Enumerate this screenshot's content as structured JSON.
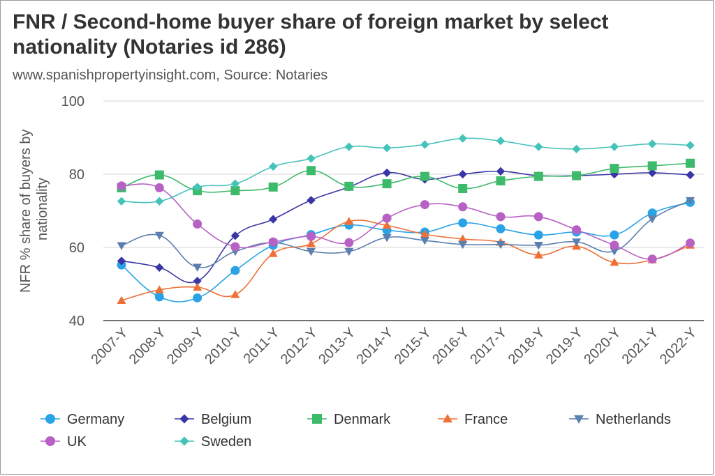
{
  "chart_data": {
    "type": "line",
    "title": "FNR / Second-home buyer share of foreign market by select nationality (Notaries id 286)",
    "subtitle": "www.spanishpropertyinsight.com, Source: Notaries",
    "ylabel_lines": [
      "NFR % share of buyers by",
      "nationality"
    ],
    "xlabel": "",
    "ylim": [
      40,
      100
    ],
    "yticks": [
      40,
      60,
      80,
      100
    ],
    "grid": true,
    "legend_position": "bottom",
    "categories": [
      "2007-Y",
      "2008-Y",
      "2009-Y",
      "2010-Y",
      "2011-Y",
      "2012-Y",
      "2013-Y",
      "2014-Y",
      "2015-Y",
      "2016-Y",
      "2017-Y",
      "2018-Y",
      "2019-Y",
      "2020-Y",
      "2021-Y",
      "2022-Y"
    ],
    "series": [
      {
        "name": "Germany",
        "color": "#29a3e6",
        "marker": "circle",
        "values": [
          55.2,
          46.5,
          46.2,
          53.7,
          60.6,
          63.5,
          66.1,
          64.7,
          64.2,
          66.7,
          65.1,
          63.4,
          64.2,
          63.4,
          69.4,
          72.3
        ]
      },
      {
        "name": "Belgium",
        "color": "#3b36a6",
        "marker": "diamond",
        "values": [
          56.3,
          54.5,
          50.8,
          63.2,
          67.7,
          72.9,
          76.5,
          80.4,
          78.6,
          80.0,
          80.8,
          79.6,
          79.6,
          80.0,
          80.4,
          79.8
        ]
      },
      {
        "name": "Denmark",
        "color": "#3dba6a",
        "marker": "square",
        "values": [
          76.3,
          79.8,
          75.5,
          75.5,
          76.5,
          81.0,
          76.7,
          77.4,
          79.4,
          76.1,
          78.2,
          79.4,
          79.6,
          81.6,
          82.3,
          83.0
        ]
      },
      {
        "name": "France",
        "color": "#ee7036",
        "marker": "triangle",
        "values": [
          45.5,
          48.4,
          49.1,
          47.1,
          58.3,
          61.0,
          67.1,
          66.0,
          63.6,
          62.3,
          61.4,
          57.9,
          60.3,
          55.9,
          56.6,
          60.6
        ]
      },
      {
        "name": "Netherlands",
        "color": "#5b7fae",
        "marker": "triangle-down",
        "values": [
          60.5,
          63.3,
          54.6,
          58.9,
          61.3,
          58.9,
          58.9,
          62.7,
          61.9,
          60.8,
          60.8,
          60.6,
          61.5,
          59.0,
          67.8,
          72.8
        ]
      },
      {
        "name": "UK",
        "color": "#b861c4",
        "marker": "circle",
        "values": [
          76.8,
          76.3,
          66.4,
          60.2,
          61.5,
          63.0,
          61.3,
          68.0,
          71.7,
          71.1,
          68.4,
          68.4,
          64.8,
          60.6,
          56.8,
          61.2
        ]
      },
      {
        "name": "Sweden",
        "color": "#46c3b9",
        "marker": "diamond",
        "values": [
          72.6,
          72.6,
          76.5,
          77.4,
          82.1,
          84.3,
          87.5,
          87.2,
          88.1,
          89.8,
          89.1,
          87.5,
          86.9,
          87.5,
          88.3,
          87.9
        ]
      }
    ]
  }
}
